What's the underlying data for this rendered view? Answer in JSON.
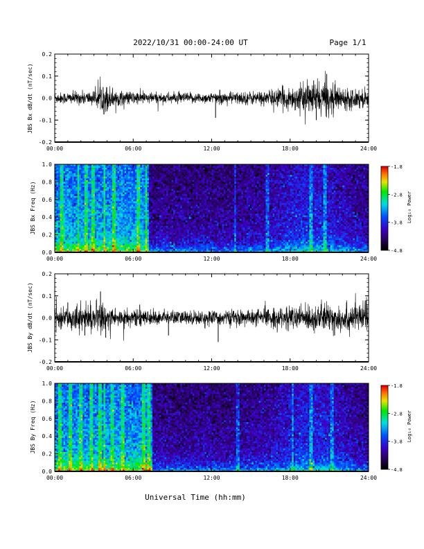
{
  "header": {
    "date_range": "2022/10/31  00:00-24:00 UT",
    "page_label": "Page 1/1"
  },
  "x_axis": {
    "label": "Universal Time (hh:mm)",
    "ticks": [
      "00:00",
      "06:00",
      "12:00",
      "18:00",
      "24:00"
    ]
  },
  "colorbar": {
    "label": "Log₁₀ Power",
    "ticks": [
      "-1.8",
      "-2.8",
      "-3.8",
      "-4.8"
    ],
    "range": [
      -4.8,
      -1.8
    ]
  },
  "chart_data": [
    {
      "type": "line",
      "ylabel": "JBS Bx dB/dt (nT/sec)",
      "xlim": [
        0,
        24
      ],
      "ylim": [
        -0.2,
        0.2
      ],
      "yticks": [
        "0.2",
        "0.1",
        "0.0",
        "-0.1",
        "-0.2"
      ],
      "baseline_amplitude": 0.02,
      "activity_envelope": [
        {
          "x": 0,
          "amp": 0.015
        },
        {
          "x": 3,
          "amp": 0.02
        },
        {
          "x": 3.8,
          "amp": 0.04
        },
        {
          "x": 5,
          "amp": 0.02
        },
        {
          "x": 8,
          "amp": 0.015
        },
        {
          "x": 12,
          "amp": 0.015
        },
        {
          "x": 16,
          "amp": 0.02
        },
        {
          "x": 18.5,
          "amp": 0.035
        },
        {
          "x": 20.5,
          "amp": 0.05
        },
        {
          "x": 22,
          "amp": 0.03
        },
        {
          "x": 24,
          "amp": 0.025
        }
      ],
      "spikes": [
        {
          "x": 3.7,
          "y": 0.05
        },
        {
          "x": 4.0,
          "y": -0.06
        },
        {
          "x": 12.3,
          "y": -0.09
        },
        {
          "x": 19.8,
          "y": 0.08
        },
        {
          "x": 20.0,
          "y": -0.1
        },
        {
          "x": 20.8,
          "y": 0.11
        },
        {
          "x": 21.3,
          "y": -0.07
        }
      ]
    },
    {
      "type": "heatmap",
      "ylabel": "JBS Bx Freq (Hz)",
      "xlim": [
        0,
        24
      ],
      "ylim": [
        0.0,
        1.0
      ],
      "yticks": [
        "1.0",
        "0.8",
        "0.6",
        "0.4",
        "0.2",
        "0.0"
      ],
      "zlabel": "Log₁₀ Power",
      "zlim": [
        -4.8,
        -1.8
      ],
      "active_intervals": [
        [
          0,
          7.2
        ]
      ],
      "bright_columns": [
        0.5,
        1.8,
        2.4,
        2.9,
        3.8,
        4.5,
        6.4,
        7.0,
        13.8,
        16.3,
        19.6,
        20.7
      ]
    },
    {
      "type": "line",
      "ylabel": "JBS By dB/dt (nT/sec)",
      "xlim": [
        0,
        24
      ],
      "ylim": [
        -0.2,
        0.2
      ],
      "yticks": [
        "0.2",
        "0.1",
        "0.0",
        "-0.1",
        "-0.2"
      ],
      "baseline_amplitude": 0.02,
      "activity_envelope": [
        {
          "x": 0,
          "amp": 0.02
        },
        {
          "x": 1.5,
          "amp": 0.035
        },
        {
          "x": 3.5,
          "amp": 0.04
        },
        {
          "x": 5,
          "amp": 0.025
        },
        {
          "x": 7,
          "amp": 0.02
        },
        {
          "x": 9,
          "amp": 0.02
        },
        {
          "x": 12,
          "amp": 0.02
        },
        {
          "x": 15,
          "amp": 0.022
        },
        {
          "x": 17.5,
          "amp": 0.03
        },
        {
          "x": 20.5,
          "amp": 0.04
        },
        {
          "x": 24,
          "amp": 0.04
        }
      ],
      "spikes": [
        {
          "x": 1.0,
          "y": 0.07
        },
        {
          "x": 2.3,
          "y": -0.08
        },
        {
          "x": 3.5,
          "y": 0.12
        },
        {
          "x": 3.9,
          "y": -0.09
        },
        {
          "x": 6.5,
          "y": 0.06
        },
        {
          "x": 8.7,
          "y": -0.08
        },
        {
          "x": 12.5,
          "y": -0.11
        },
        {
          "x": 21.4,
          "y": -0.08
        },
        {
          "x": 23.8,
          "y": 0.08
        }
      ]
    },
    {
      "type": "heatmap",
      "ylabel": "JBS By Freq (Hz)",
      "xlim": [
        0,
        24
      ],
      "ylim": [
        0.0,
        1.0
      ],
      "yticks": [
        "1.0",
        "0.8",
        "0.6",
        "0.4",
        "0.2",
        "0.0"
      ],
      "zlabel": "Log₁₀ Power",
      "zlim": [
        -4.8,
        -1.8
      ],
      "active_intervals": [
        [
          0,
          7.5
        ]
      ],
      "bright_columns": [
        0.4,
        1.2,
        2.0,
        2.8,
        3.5,
        3.8,
        4.4,
        5.2,
        6.8,
        7.2,
        14.0,
        18.2,
        19.6,
        21.2
      ]
    }
  ]
}
